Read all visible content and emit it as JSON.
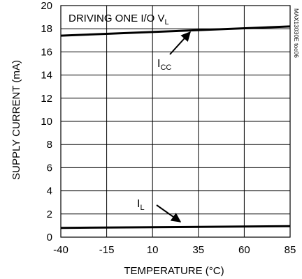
{
  "chart_data": {
    "type": "line",
    "title": "",
    "inset_label": "DRIVING ONE I/O V",
    "inset_label_sub": "L",
    "figure_id": "MAX13030E toc06",
    "xlabel": "TEMPERATURE (°C)",
    "ylabel": "SUPPLY CURRENT (mA)",
    "xlim": [
      -40,
      85
    ],
    "ylim": [
      0,
      20
    ],
    "x_ticks": [
      -40,
      -15,
      10,
      35,
      60,
      85
    ],
    "y_ticks": [
      0,
      2,
      4,
      6,
      8,
      10,
      12,
      14,
      16,
      18,
      20
    ],
    "grid": true,
    "series": [
      {
        "name": "I",
        "name_sub": "CC",
        "x": [
          -40,
          85
        ],
        "y": [
          17.4,
          18.2
        ]
      },
      {
        "name": "I",
        "name_sub": "L",
        "x": [
          -40,
          85
        ],
        "y": [
          0.8,
          0.95
        ]
      }
    ],
    "colors": {
      "line": "#000000",
      "grid": "#000000",
      "background": "#ffffff"
    }
  }
}
